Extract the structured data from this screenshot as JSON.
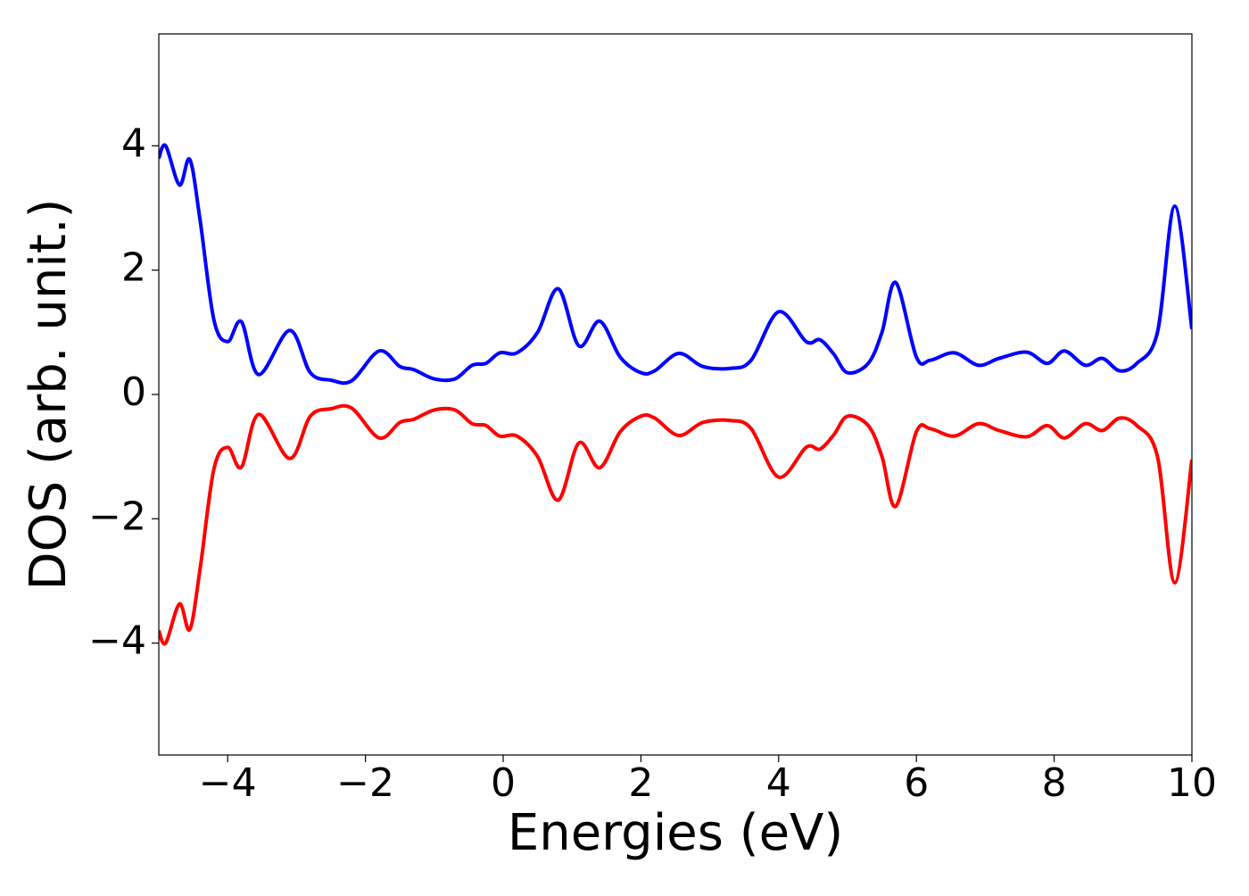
{
  "chart_data": {
    "type": "line",
    "xlabel": "Energies (eV)",
    "ylabel": "DOS (arb. unit.)",
    "x": [
      -5,
      -4.9,
      -4.7,
      -4.55,
      -4.4,
      -4.2,
      -4.0,
      -3.8,
      -3.55,
      -3.1,
      -2.8,
      -2.5,
      -2.2,
      -1.8,
      -1.5,
      -1.3,
      -1.0,
      -0.7,
      -0.45,
      -0.25,
      -0.05,
      0.2,
      0.5,
      0.8,
      1.1,
      1.4,
      1.7,
      2.0,
      2.2,
      2.55,
      2.9,
      3.3,
      3.6,
      4.0,
      4.4,
      4.6,
      4.8,
      5.0,
      5.3,
      5.5,
      5.7,
      6.0,
      6.2,
      6.55,
      6.9,
      7.2,
      7.6,
      7.9,
      8.15,
      8.45,
      8.7,
      8.95,
      9.2,
      9.5,
      9.75,
      10
    ],
    "series": [
      {
        "color": "#0000ff",
        "values": [
          3.8,
          4.0,
          3.37,
          3.78,
          2.8,
          1.2,
          0.85,
          1.17,
          0.32,
          1.03,
          0.35,
          0.23,
          0.22,
          0.7,
          0.45,
          0.4,
          0.25,
          0.25,
          0.47,
          0.5,
          0.67,
          0.67,
          1.0,
          1.7,
          0.78,
          1.18,
          0.6,
          0.35,
          0.38,
          0.66,
          0.45,
          0.42,
          0.55,
          1.33,
          0.85,
          0.88,
          0.65,
          0.35,
          0.5,
          1.0,
          1.8,
          0.6,
          0.55,
          0.67,
          0.47,
          0.58,
          0.68,
          0.5,
          0.7,
          0.47,
          0.58,
          0.38,
          0.5,
          1.0,
          3.03,
          1.05
        ]
      },
      {
        "color": "#ff0000",
        "values": [
          -3.8,
          -4.0,
          -3.37,
          -3.78,
          -2.8,
          -1.2,
          -0.85,
          -1.17,
          -0.32,
          -1.03,
          -0.35,
          -0.23,
          -0.22,
          -0.7,
          -0.45,
          -0.4,
          -0.25,
          -0.25,
          -0.47,
          -0.5,
          -0.67,
          -0.67,
          -1.0,
          -1.7,
          -0.78,
          -1.18,
          -0.6,
          -0.35,
          -0.38,
          -0.66,
          -0.45,
          -0.42,
          -0.55,
          -1.33,
          -0.85,
          -0.88,
          -0.65,
          -0.35,
          -0.5,
          -1.0,
          -1.8,
          -0.6,
          -0.55,
          -0.67,
          -0.47,
          -0.58,
          -0.68,
          -0.5,
          -0.7,
          -0.47,
          -0.58,
          -0.38,
          -0.5,
          -1.0,
          -3.03,
          -1.05
        ]
      }
    ],
    "xlim": [
      -5,
      10
    ],
    "xticks": [
      {
        "value": -4,
        "label": "−4"
      },
      {
        "value": -2,
        "label": "−2"
      },
      0,
      2,
      4,
      6,
      8,
      10
    ],
    "ylim": [
      -5.8,
      5.8
    ],
    "yticks": [
      {
        "value": -4,
        "label": "−4"
      },
      {
        "value": -2,
        "label": "−2"
      },
      0,
      2,
      4
    ],
    "grid": false
  }
}
